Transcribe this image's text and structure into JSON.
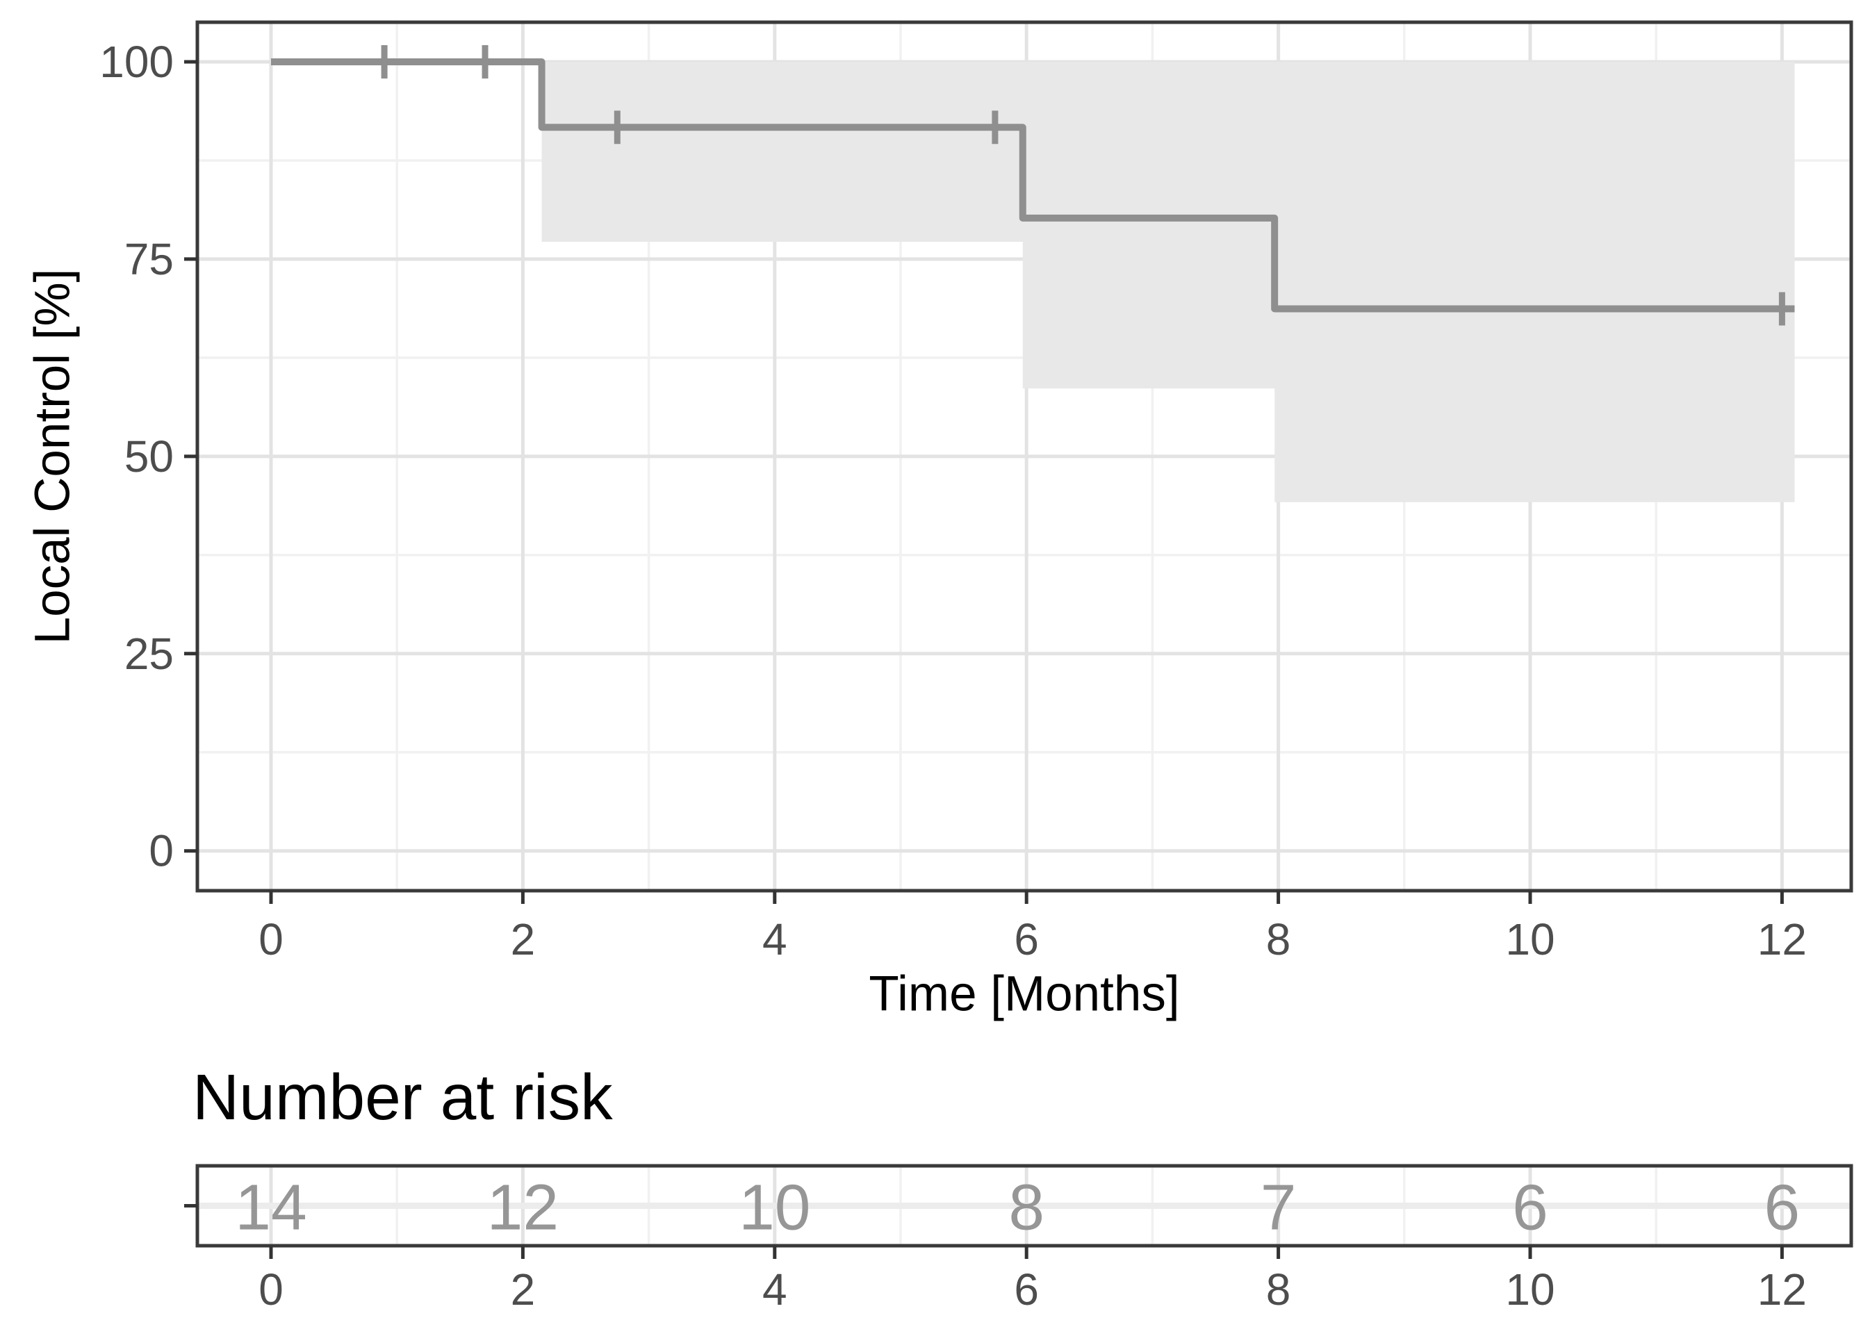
{
  "chart_data": {
    "type": "line",
    "subtype": "kaplan-meier-step",
    "title": "",
    "xlabel": "Time [Months]",
    "ylabel": "Local Control [%]",
    "xlim": [
      -0.6,
      12.56
    ],
    "ylim": [
      -5,
      105
    ],
    "grid": true,
    "legend_position": "none",
    "x_ticks": [
      0,
      2,
      4,
      6,
      8,
      10,
      12
    ],
    "x_tick_labels": [
      "0",
      "2",
      "4",
      "6",
      "8",
      "10",
      "12"
    ],
    "y_ticks": [
      0,
      25,
      50,
      75,
      100
    ],
    "y_tick_labels": [
      "0",
      "25",
      "50",
      "75",
      "100"
    ],
    "x_minor_gridlines": [
      1,
      3,
      5,
      7,
      9,
      11
    ],
    "y_minor_gridlines": [
      12.5,
      37.5,
      62.5,
      87.5
    ],
    "series": [
      {
        "name": "Local Control",
        "steps": [
          {
            "t_start": 0,
            "t_end": 2.15,
            "survival_pct": 100
          },
          {
            "t_start": 2.15,
            "t_end": 5.97,
            "survival_pct": 91.7
          },
          {
            "t_start": 5.97,
            "t_end": 7.97,
            "survival_pct": 80.2
          },
          {
            "t_start": 7.97,
            "t_end": 12.1,
            "survival_pct": 68.7
          }
        ],
        "censor_marks": [
          {
            "t": 0.9,
            "survival_pct": 100
          },
          {
            "t": 1.7,
            "survival_pct": 100
          },
          {
            "t": 2.75,
            "survival_pct": 91.7
          },
          {
            "t": 5.75,
            "survival_pct": 91.7
          },
          {
            "t": 12.0,
            "survival_pct": 68.7
          }
        ],
        "confidence_band": [
          {
            "t_start": 2.15,
            "t_end": 5.97,
            "lower_pct": 77.2,
            "upper_pct": 100
          },
          {
            "t_start": 5.97,
            "t_end": 7.97,
            "lower_pct": 58.6,
            "upper_pct": 100
          },
          {
            "t_start": 7.97,
            "t_end": 12.1,
            "lower_pct": 44.2,
            "upper_pct": 100
          }
        ]
      }
    ],
    "risk_table": {
      "title": "Number at risk",
      "times": [
        0,
        2,
        4,
        6,
        8,
        10,
        12
      ],
      "counts": [
        "14",
        "12",
        "10",
        "8",
        "7",
        "6",
        "6"
      ],
      "tick_labels": [
        "0",
        "2",
        "4",
        "6",
        "8",
        "10",
        "12"
      ]
    }
  },
  "colors": {
    "background": "#ffffff",
    "curve": "#8f8f8f",
    "censor": "#8f8f8f",
    "confidence_band": "#e8e8e8",
    "grid_major": "#e3e3e3",
    "grid_minor": "#f1f1f1",
    "risk_grid_row": "#ececec",
    "panel_border": "#3a3a3a",
    "tick_mark": "#333333",
    "tick_label": "#4d4d4d",
    "axis_title": "#000000",
    "risk_number": "#969696"
  }
}
